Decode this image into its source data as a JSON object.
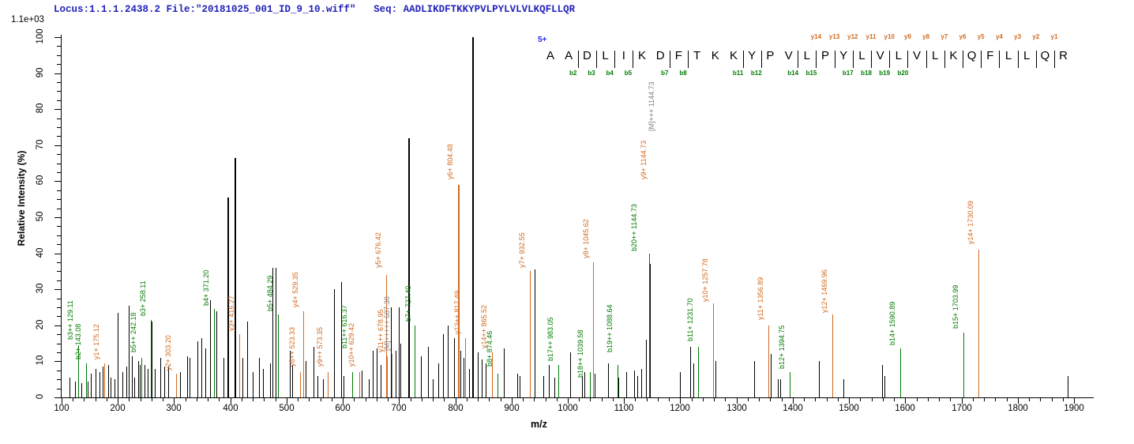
{
  "header": {
    "text": "Locus:1.1.1.2438.2 File:\"20181025_001_ID_9_10.wiff\"   Seq: AADLIKDFTKKYPVLPYLVLVLKQFLLQR"
  },
  "intensity_scale_label": "1.1e+03",
  "precursor_charge_label": "5+",
  "peptide": {
    "sequence": "AADLIKDFTKKYPVLPYLVLVLKQFLLQR",
    "separators_after": [
      2,
      3,
      4,
      5,
      7,
      8,
      11,
      12,
      14,
      15,
      16,
      17,
      18,
      19,
      20,
      21,
      22,
      23,
      24,
      25,
      26,
      27,
      28
    ],
    "y_ion_marks": [
      {
        "label": "y14",
        "after_residue": 15
      },
      {
        "label": "y13",
        "after_residue": 16
      },
      {
        "label": "y12",
        "after_residue": 17
      },
      {
        "label": "y11",
        "after_residue": 18
      },
      {
        "label": "y10",
        "after_residue": 19
      },
      {
        "label": "y9",
        "after_residue": 20
      },
      {
        "label": "y8",
        "after_residue": 21
      },
      {
        "label": "y7",
        "after_residue": 22
      },
      {
        "label": "y6",
        "after_residue": 23
      },
      {
        "label": "y5",
        "after_residue": 24
      },
      {
        "label": "y4",
        "after_residue": 25
      },
      {
        "label": "y3",
        "after_residue": 26
      },
      {
        "label": "y2",
        "after_residue": 27
      },
      {
        "label": "y1",
        "after_residue": 28
      }
    ],
    "b_ion_marks": [
      {
        "label": "b2",
        "after_residue": 2
      },
      {
        "label": "b3",
        "after_residue": 3
      },
      {
        "label": "b4",
        "after_residue": 4
      },
      {
        "label": "b5",
        "after_residue": 5
      },
      {
        "label": "b7",
        "after_residue": 7
      },
      {
        "label": "b8",
        "after_residue": 8
      },
      {
        "label": "b11",
        "after_residue": 11
      },
      {
        "label": "b12",
        "after_residue": 12
      },
      {
        "label": "b14",
        "after_residue": 14
      },
      {
        "label": "b15",
        "after_residue": 15
      },
      {
        "label": "b17",
        "after_residue": 17
      },
      {
        "label": "b18",
        "after_residue": 18
      },
      {
        "label": "b19",
        "after_residue": 19
      },
      {
        "label": "b20",
        "after_residue": 20
      }
    ]
  },
  "axes": {
    "x_title": "m/z",
    "y_title": "Relative  Intensity (%)",
    "x_min": 100,
    "x_max": 1900,
    "x_major_step": 100,
    "x_minor_step": 20,
    "y_min": 0,
    "y_max": 100,
    "y_major_step": 10,
    "y_minor_step": 2.5
  },
  "colors": {
    "b_ion": "#007B00",
    "y_ion": "#D2691E",
    "precursor": "#7F7F7F",
    "peak_default": "#000000",
    "header_text": "#2222BB",
    "charge_text": "#2020FF"
  },
  "chart_data": {
    "type": "bar",
    "title": "Locus:1.1.1.2438.2 File:\"20181025_001_ID_9_10.wiff\"   Seq: AADLIKDFTKKYPVLPYLVLVLKQFLLQR",
    "xlabel": "m/z",
    "ylabel": "Relative  Intensity (%)",
    "xlim": [
      100,
      1900
    ],
    "ylim": [
      0,
      100
    ],
    "absolute_intensity_scale": "1.1e+03",
    "peaks_format": [
      "mz",
      "relative_intensity_pct",
      "color_key k=unassigned b=b-ion y=y-ion m=precursor"
    ],
    "peaks": [
      [
        114,
        5.5,
        "k"
      ],
      [
        124,
        4.5,
        "k"
      ],
      [
        129.11,
        14.5,
        "b"
      ],
      [
        135,
        4,
        "k"
      ],
      [
        143.08,
        9.5,
        "b"
      ],
      [
        146,
        4.5,
        "k"
      ],
      [
        152,
        6.5,
        "k"
      ],
      [
        160,
        8,
        "k"
      ],
      [
        167,
        7,
        "k"
      ],
      [
        173,
        8.5,
        "k"
      ],
      [
        175.12,
        9.5,
        "y"
      ],
      [
        183,
        9,
        "k"
      ],
      [
        187,
        5.5,
        "k"
      ],
      [
        194,
        5,
        "k"
      ],
      [
        200,
        23.5,
        "k"
      ],
      [
        208,
        7,
        "k"
      ],
      [
        215,
        8.5,
        "k"
      ],
      [
        219,
        25.5,
        "k"
      ],
      [
        225,
        11.5,
        "k"
      ],
      [
        229,
        5.5,
        "k"
      ],
      [
        236,
        10,
        "k"
      ],
      [
        239,
        9,
        "k"
      ],
      [
        242.18,
        11,
        "b"
      ],
      [
        248,
        9,
        "k"
      ],
      [
        253,
        8,
        "k"
      ],
      [
        258.11,
        21.5,
        "b"
      ],
      [
        260.5,
        21,
        "k"
      ],
      [
        266,
        8,
        "k"
      ],
      [
        276,
        11,
        "k"
      ],
      [
        283,
        8.5,
        "k"
      ],
      [
        289,
        8.5,
        "k"
      ],
      [
        303.2,
        6.5,
        "y"
      ],
      [
        311,
        7,
        "k"
      ],
      [
        323,
        11.5,
        "k"
      ],
      [
        328,
        11,
        "k"
      ],
      [
        341,
        15.5,
        "k"
      ],
      [
        348,
        16.5,
        "k"
      ],
      [
        355,
        13.5,
        "k"
      ],
      [
        364,
        27,
        "k"
      ],
      [
        371.2,
        24.5,
        "b"
      ],
      [
        375,
        24,
        "k"
      ],
      [
        388,
        11,
        "k"
      ],
      [
        395,
        55.5,
        "k"
      ],
      [
        408,
        66.5,
        "k"
      ],
      [
        416.27,
        17.5,
        "y"
      ],
      [
        421,
        11,
        "k"
      ],
      [
        430,
        21,
        "k"
      ],
      [
        440,
        7,
        "k"
      ],
      [
        451,
        11,
        "k"
      ],
      [
        458,
        8,
        "k"
      ],
      [
        470,
        9.5,
        "k"
      ],
      [
        475.5,
        36,
        "k"
      ],
      [
        480,
        36,
        "k"
      ],
      [
        484.29,
        23,
        "b"
      ],
      [
        506,
        13,
        "k"
      ],
      [
        510,
        9,
        "k"
      ],
      [
        523.33,
        7,
        "y"
      ],
      [
        529.35,
        24,
        "y"
      ],
      [
        534,
        10,
        "k"
      ],
      [
        548,
        14,
        "k"
      ],
      [
        555,
        6,
        "k"
      ],
      [
        565,
        5,
        "k"
      ],
      [
        573.35,
        7,
        "y"
      ],
      [
        584,
        30,
        "k"
      ],
      [
        597,
        32,
        "k"
      ],
      [
        601,
        6,
        "k"
      ],
      [
        616.37,
        7,
        "b"
      ],
      [
        629.42,
        7,
        "y"
      ],
      [
        634,
        7.5,
        "k"
      ],
      [
        646,
        5,
        "k"
      ],
      [
        653,
        13,
        "k"
      ],
      [
        660,
        13.5,
        "k"
      ],
      [
        667,
        9,
        "k"
      ],
      [
        676.42,
        34,
        "y"
      ],
      [
        678.95,
        11.5,
        "y"
      ],
      [
        686,
        25,
        "k"
      ],
      [
        687.38,
        12,
        "m"
      ],
      [
        694,
        13,
        "k"
      ],
      [
        700,
        25,
        "k"
      ],
      [
        703,
        15,
        "k"
      ],
      [
        716.5,
        72,
        "k"
      ],
      [
        727.4,
        20,
        "b"
      ],
      [
        739,
        11.5,
        "k"
      ],
      [
        752,
        14,
        "k"
      ],
      [
        760,
        5,
        "k"
      ],
      [
        770,
        9.5,
        "k"
      ],
      [
        778,
        17.5,
        "k"
      ],
      [
        787,
        20,
        "k"
      ],
      [
        798,
        16.5,
        "k"
      ],
      [
        804.48,
        59,
        "y"
      ],
      [
        809,
        13,
        "k"
      ],
      [
        814,
        11,
        "k"
      ],
      [
        817.49,
        16.5,
        "y"
      ],
      [
        824,
        8,
        "k"
      ],
      [
        829.5,
        100,
        "k"
      ],
      [
        840,
        12.5,
        "k"
      ],
      [
        847,
        10.5,
        "k"
      ],
      [
        854,
        9.5,
        "k"
      ],
      [
        865.52,
        12.5,
        "y"
      ],
      [
        874.46,
        6.5,
        "b"
      ],
      [
        886,
        13.5,
        "k"
      ],
      [
        910,
        6.5,
        "k"
      ],
      [
        914,
        6,
        "k"
      ],
      [
        932.55,
        35,
        "y"
      ],
      [
        941,
        35.5,
        "k"
      ],
      [
        957,
        6,
        "k"
      ],
      [
        966,
        9,
        "k"
      ],
      [
        976,
        5.5,
        "k"
      ],
      [
        983.05,
        9,
        "b"
      ],
      [
        1004,
        12.5,
        "k"
      ],
      [
        1025,
        6,
        "k"
      ],
      [
        1029,
        7,
        "k"
      ],
      [
        1039.58,
        7,
        "b"
      ],
      [
        1045.62,
        37.5,
        "y"
      ],
      [
        1048,
        6.5,
        "k"
      ],
      [
        1071,
        9.5,
        "k"
      ],
      [
        1088.64,
        9,
        "b"
      ],
      [
        1090,
        5.5,
        "k"
      ],
      [
        1104,
        7,
        "k"
      ],
      [
        1118,
        7.5,
        "k"
      ],
      [
        1124,
        6,
        "k"
      ],
      [
        1130,
        8,
        "k"
      ],
      [
        1139,
        16,
        "k"
      ],
      [
        1144.73,
        40,
        "b"
      ],
      [
        1146,
        37,
        "k"
      ],
      [
        1200,
        7,
        "k"
      ],
      [
        1218,
        14,
        "k"
      ],
      [
        1223,
        9.5,
        "k"
      ],
      [
        1231.7,
        14,
        "b"
      ],
      [
        1257.78,
        26,
        "y"
      ],
      [
        1262,
        10,
        "k"
      ],
      [
        1331,
        10,
        "k"
      ],
      [
        1356.89,
        20,
        "y"
      ],
      [
        1361,
        12,
        "k"
      ],
      [
        1373,
        5,
        "k"
      ],
      [
        1378,
        5,
        "k"
      ],
      [
        1394.75,
        7,
        "b"
      ],
      [
        1446,
        10,
        "k"
      ],
      [
        1469.96,
        23,
        "y"
      ],
      [
        1490,
        5,
        "k"
      ],
      [
        1559,
        9,
        "k"
      ],
      [
        1563,
        6,
        "k"
      ],
      [
        1590.89,
        13.5,
        "b"
      ],
      [
        1703.99,
        18,
        "b"
      ],
      [
        1730.09,
        41,
        "y"
      ],
      [
        1889,
        6,
        "k"
      ]
    ],
    "peak_labels_format": [
      "text",
      "color_key",
      "mz",
      "label_bottom_pct",
      "dx_px"
    ],
    "peak_labels": [
      [
        "b3++ 129.11",
        "b",
        129.11,
        16,
        0
      ],
      [
        "b2+ 143.08",
        "b",
        143.08,
        10.5,
        0
      ],
      [
        "y1+ 175.12",
        "y",
        175.12,
        10.5,
        0
      ],
      [
        "b5++ 242.18",
        "b",
        242.18,
        12.5,
        0
      ],
      [
        "b3+ 258.11",
        "b",
        258.11,
        22.5,
        0
      ],
      [
        "y2+ 303.20",
        "y",
        303.2,
        7.5,
        0
      ],
      [
        "b4+ 371.20",
        "b",
        371.2,
        25.5,
        0
      ],
      [
        "y3+ 416.27",
        "y",
        416.27,
        18.5,
        0
      ],
      [
        "b5+ 484.29",
        "b",
        484.29,
        24,
        0
      ],
      [
        "y8++ 523.33",
        "y",
        523.33,
        8.5,
        0
      ],
      [
        "y4+ 529.35",
        "y",
        529.35,
        25,
        0
      ],
      [
        "y9++ 573.35",
        "y",
        573.35,
        8.5,
        0
      ],
      [
        "b11++ 616.37",
        "b",
        616.37,
        13.5,
        0
      ],
      [
        "y10++ 629.42",
        "y",
        629.42,
        8.5,
        0
      ],
      [
        "y5+ 676.42",
        "y",
        676.42,
        36,
        0
      ],
      [
        "y11++ 678.95",
        "y",
        678.95,
        12.5,
        2
      ],
      [
        "[M]+++++ 687.38",
        "m",
        687.38,
        13,
        4
      ],
      [
        "b7+ 727.40",
        "b",
        727.4,
        21,
        2
      ],
      [
        "y6+ 804.48",
        "y",
        804.48,
        60.5,
        0
      ],
      [
        "y13++ 817.49",
        "y",
        817.49,
        17.5,
        0
      ],
      [
        "y14++ 865.52",
        "y",
        865.52,
        13.5,
        0
      ],
      [
        "b8+ 874.46",
        "b",
        874.46,
        8.5,
        0
      ],
      [
        "y7+ 932.55",
        "y",
        932.55,
        36,
        0
      ],
      [
        "b17++ 983.05",
        "b",
        983.05,
        10,
        0
      ],
      [
        "b18++ 1039.58",
        "b",
        1039.58,
        5.5,
        -2
      ],
      [
        "y8+ 1045.62",
        "y",
        1045.62,
        38.5,
        0
      ],
      [
        "b19++ 1088.64",
        "b",
        1088.64,
        12.5,
        0
      ],
      [
        "b20++ 1144.73",
        "b",
        1144.73,
        40.5,
        -9
      ],
      [
        "y9+ 1144.73",
        "y",
        1144.73,
        60.5,
        3
      ],
      [
        "[M]+++ 1144.73",
        "m",
        1144.73,
        74,
        13
      ],
      [
        "b11+ 1231.70",
        "b",
        1231.7,
        15.5,
        0
      ],
      [
        "y10+ 1257.78",
        "y",
        1257.78,
        26.5,
        0
      ],
      [
        "y11+ 1356.89",
        "y",
        1356.89,
        21.5,
        0
      ],
      [
        "b12+ 1394.75",
        "b",
        1394.75,
        8,
        0
      ],
      [
        "y12+ 1469.96",
        "y",
        1469.96,
        23.5,
        0
      ],
      [
        "b14+ 1590.89",
        "b",
        1590.89,
        14.5,
        0
      ],
      [
        "b15+ 1703.99",
        "b",
        1703.99,
        19,
        0
      ],
      [
        "y14+ 1730.09",
        "y",
        1730.09,
        42.5,
        0
      ]
    ]
  }
}
